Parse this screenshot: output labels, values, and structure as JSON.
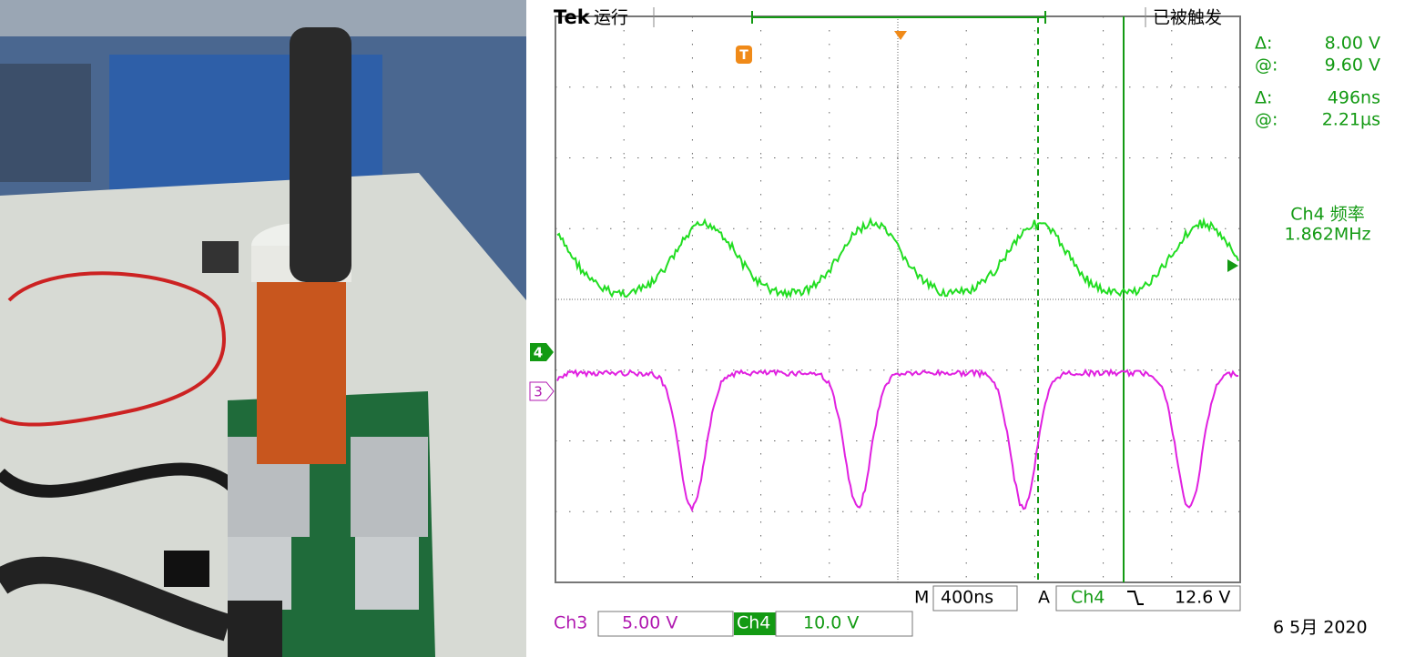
{
  "header": {
    "brand": "Tek",
    "status": "运行",
    "trigger_state": "已被触发"
  },
  "readouts": [
    {
      "label": "Δ:",
      "value": "8.00 V"
    },
    {
      "label": "@:",
      "value": "9.60 V"
    },
    {
      "label": "Δ:",
      "value": "496ns"
    },
    {
      "label": "@:",
      "value": "2.21µs"
    }
  ],
  "measurement": {
    "label": "Ch4 频率",
    "value": "1.862MHz"
  },
  "markers": {
    "trigger": "T",
    "ch4": "4",
    "ch3": "3"
  },
  "footer": {
    "timebase_prefix": "M",
    "timebase": "400ns",
    "trigger_prefix": "A",
    "trigger_source": "Ch4",
    "trigger_level": "12.6 V",
    "ch3_label": "Ch3",
    "ch3_scale": "5.00 V",
    "ch4_label": "Ch4",
    "ch4_scale": "10.0 V",
    "date": "6 5月 2020"
  }
}
